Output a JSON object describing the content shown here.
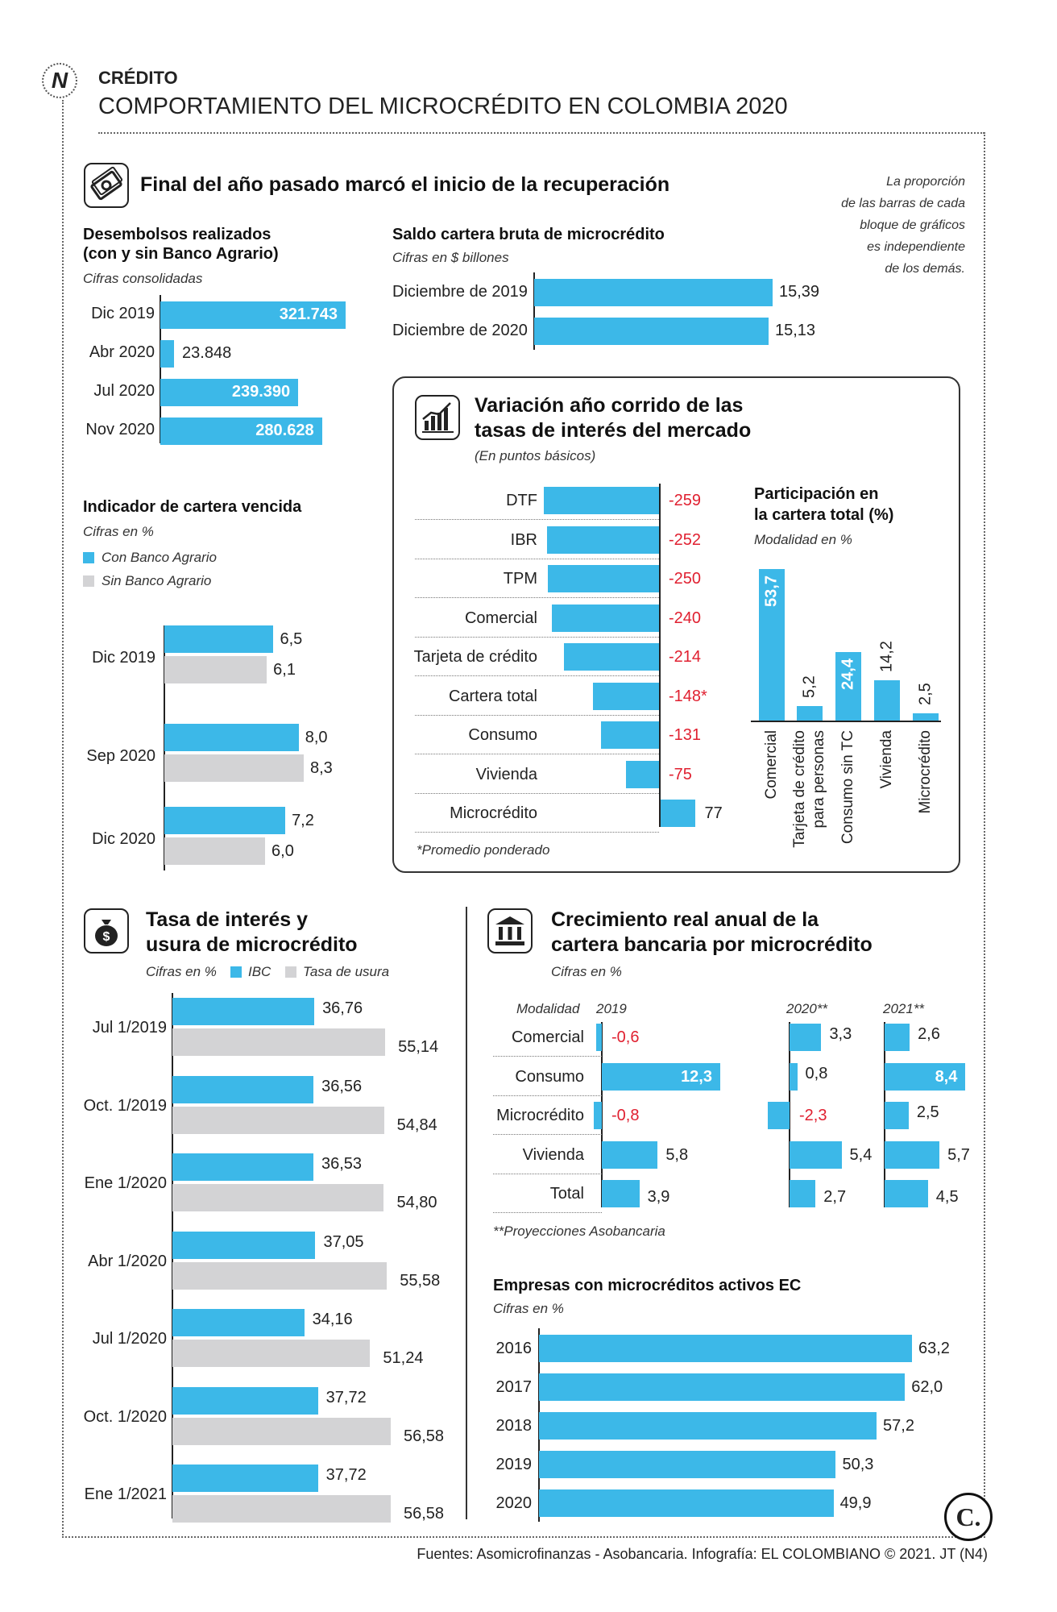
{
  "header": {
    "kicker": "CRÉDITO",
    "title": "COMPORTAMIENTO DEL MICROCRÉDITO EN COLOMBIA 2020",
    "logo_letter": "N"
  },
  "section1": {
    "title": "Final del año pasado marcó el inicio de la recuperación",
    "note": [
      "La proporción",
      "de las barras de cada",
      "bloque de gráficos",
      "es independiente",
      "de los demás."
    ]
  },
  "section3": {
    "title_line1": "Tasa de interés y",
    "title_line2": "usura de microcrédito"
  },
  "section4": {
    "title_line1": "Crecimiento real anual de la",
    "title_line2": "cartera bancaria por microcrédito"
  },
  "footer": {
    "credits": "Fuentes: Asomicrofinanzas - Asobancaria. Infografía: EL COLOMBIANO © 2021. JT (N4)",
    "logo_letter": "C."
  },
  "colors": {
    "blue": "#3cb8e8",
    "gray": "#d3d3d5",
    "negative": "#e02030"
  },
  "chart_data": [
    {
      "id": "desembolsos",
      "type": "bar",
      "title": "Desembolsos realizados",
      "title2": "(con y sin Banco Agrario)",
      "subtitle": "Cifras consolidadas",
      "categories": [
        "Dic 2019",
        "Abr 2020",
        "Jul 2020",
        "Nov 2020"
      ],
      "values": [
        321743,
        23848,
        239390,
        280628
      ],
      "labels": [
        "321.743",
        "23.848",
        "239.390",
        "280.628"
      ]
    },
    {
      "id": "saldo",
      "type": "bar",
      "title": "Saldo cartera bruta de microcrédito",
      "subtitle": "Cifras en $ billones",
      "categories": [
        "Diciembre de 2019",
        "Diciembre de 2020"
      ],
      "values": [
        15.39,
        15.13
      ],
      "labels": [
        "15,39",
        "15,13"
      ]
    },
    {
      "id": "cartera_vencida",
      "type": "bar",
      "title": "Indicador de cartera vencida",
      "subtitle": "Cifras en %",
      "legend": [
        "Con Banco Agrario",
        "Sin Banco Agrario"
      ],
      "categories": [
        "Dic 2019",
        "Sep 2020",
        "Dic 2020"
      ],
      "series": [
        {
          "name": "Con Banco Agrario",
          "values": [
            6.5,
            8.0,
            7.2
          ],
          "labels": [
            "6,5",
            "8,0",
            "7,2"
          ]
        },
        {
          "name": "Sin Banco Agrario",
          "values": [
            6.1,
            8.3,
            6.0
          ],
          "labels": [
            "6,1",
            "8,3",
            "6,0"
          ]
        }
      ]
    },
    {
      "id": "tasas",
      "type": "bar",
      "title_line1": "Variación año corrido de las",
      "title_line2": "tasas de interés del mercado",
      "subtitle": "(En puntos básicos)",
      "footnote": "*Promedio ponderado",
      "categories": [
        "DTF",
        "IBR",
        "TPM",
        "Comercial",
        "Tarjeta de crédito",
        "Cartera total",
        "Consumo",
        "Vivienda",
        "Microcrédito"
      ],
      "values": [
        -259,
        -252,
        -250,
        -240,
        -214,
        -148,
        -131,
        -75,
        77
      ],
      "labels": [
        "-259",
        "-252",
        "-250",
        "-240",
        "-214",
        "-148*",
        "-131",
        "-75",
        "77"
      ]
    },
    {
      "id": "participacion",
      "type": "bar",
      "title_line1": "Participación en",
      "title_line2": "la cartera total (%)",
      "subtitle": "Modalidad en %",
      "categories": [
        "Comercial",
        "Tarjeta de crédito|para personas",
        "Consumo sin TC",
        "Vivienda",
        "Microcrédito"
      ],
      "values": [
        53.7,
        5.2,
        24.4,
        14.2,
        2.5
      ],
      "labels": [
        "53,7",
        "5,2",
        "24,4",
        "14,2",
        "2,5"
      ]
    },
    {
      "id": "usura",
      "type": "bar",
      "subtitle": "Cifras en %",
      "legend": [
        "IBC",
        "Tasa de usura"
      ],
      "categories": [
        "Jul 1/2019",
        "Oct. 1/2019",
        "Ene 1/2020",
        "Abr 1/2020",
        "Jul 1/2020",
        "Oct. 1/2020",
        "Ene 1/2021"
      ],
      "series": [
        {
          "name": "IBC",
          "values": [
            36.76,
            36.56,
            36.53,
            37.05,
            34.16,
            37.72,
            37.72
          ],
          "labels": [
            "36,76",
            "36,56",
            "36,53",
            "37,05",
            "34,16",
            "37,72",
            "37,72"
          ]
        },
        {
          "name": "Tasa de usura",
          "values": [
            55.14,
            54.84,
            54.8,
            55.58,
            51.24,
            56.58,
            56.58
          ],
          "labels": [
            "55,14",
            "54,84",
            "54,80",
            "55,58",
            "51,24",
            "56,58",
            "56,58"
          ]
        }
      ]
    },
    {
      "id": "crecimiento",
      "type": "bar",
      "subtitle": "Cifras en %",
      "row_header": "Modalidad",
      "footnote": "**Proyecciones Asobancaria",
      "categories": [
        "Comercial",
        "Consumo",
        "Microcrédito",
        "Vivienda",
        "Total"
      ],
      "series": [
        {
          "name": "2019",
          "values": [
            -0.6,
            12.3,
            -0.8,
            5.8,
            3.9
          ],
          "labels": [
            "-0,6",
            "12,3",
            "-0,8",
            "5,8",
            "3,9"
          ]
        },
        {
          "name": "2020**",
          "values": [
            3.3,
            0.8,
            -2.3,
            5.4,
            2.7
          ],
          "labels": [
            "3,3",
            "0,8",
            "-2,3",
            "5,4",
            "2,7"
          ]
        },
        {
          "name": "2021**",
          "values": [
            2.6,
            8.4,
            2.5,
            5.7,
            4.5
          ],
          "labels": [
            "2,6",
            "8,4",
            "2,5",
            "5,7",
            "4,5"
          ]
        }
      ]
    },
    {
      "id": "empresas",
      "type": "bar",
      "title": "Empresas con microcréditos activos EC",
      "subtitle": "Cifras en %",
      "categories": [
        "2016",
        "2017",
        "2018",
        "2019",
        "2020"
      ],
      "values": [
        63.2,
        62.0,
        57.2,
        50.3,
        49.9
      ],
      "labels": [
        "63,2",
        "62,0",
        "57,2",
        "50,3",
        "49,9"
      ]
    }
  ]
}
